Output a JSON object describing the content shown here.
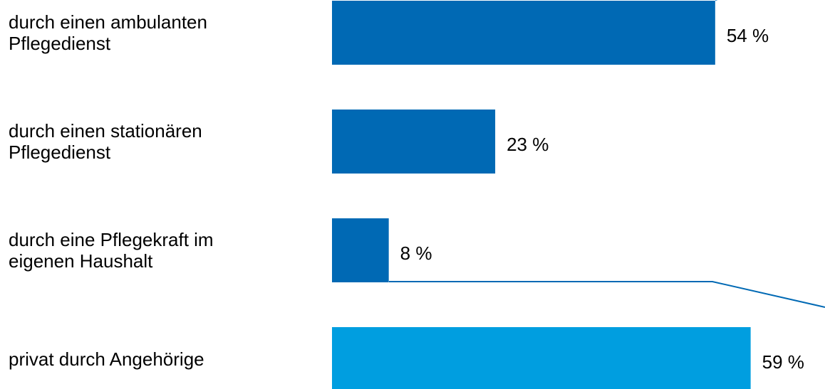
{
  "chart_data": {
    "type": "bar",
    "orientation": "horizontal",
    "categories": [
      "durch einen ambulanten\nPflegedienst",
      "durch einen stationären\nPflegedienst",
      "durch eine Pflegekraft im\neigenen Haushalt",
      "privat durch Angehörige"
    ],
    "values": [
      54,
      23,
      8,
      59
    ],
    "value_labels": [
      "54 %",
      "23 %",
      "8 %",
      "59 %"
    ],
    "colors": [
      "#0069b4",
      "#0069b4",
      "#0069b4",
      "#009ee0"
    ]
  }
}
